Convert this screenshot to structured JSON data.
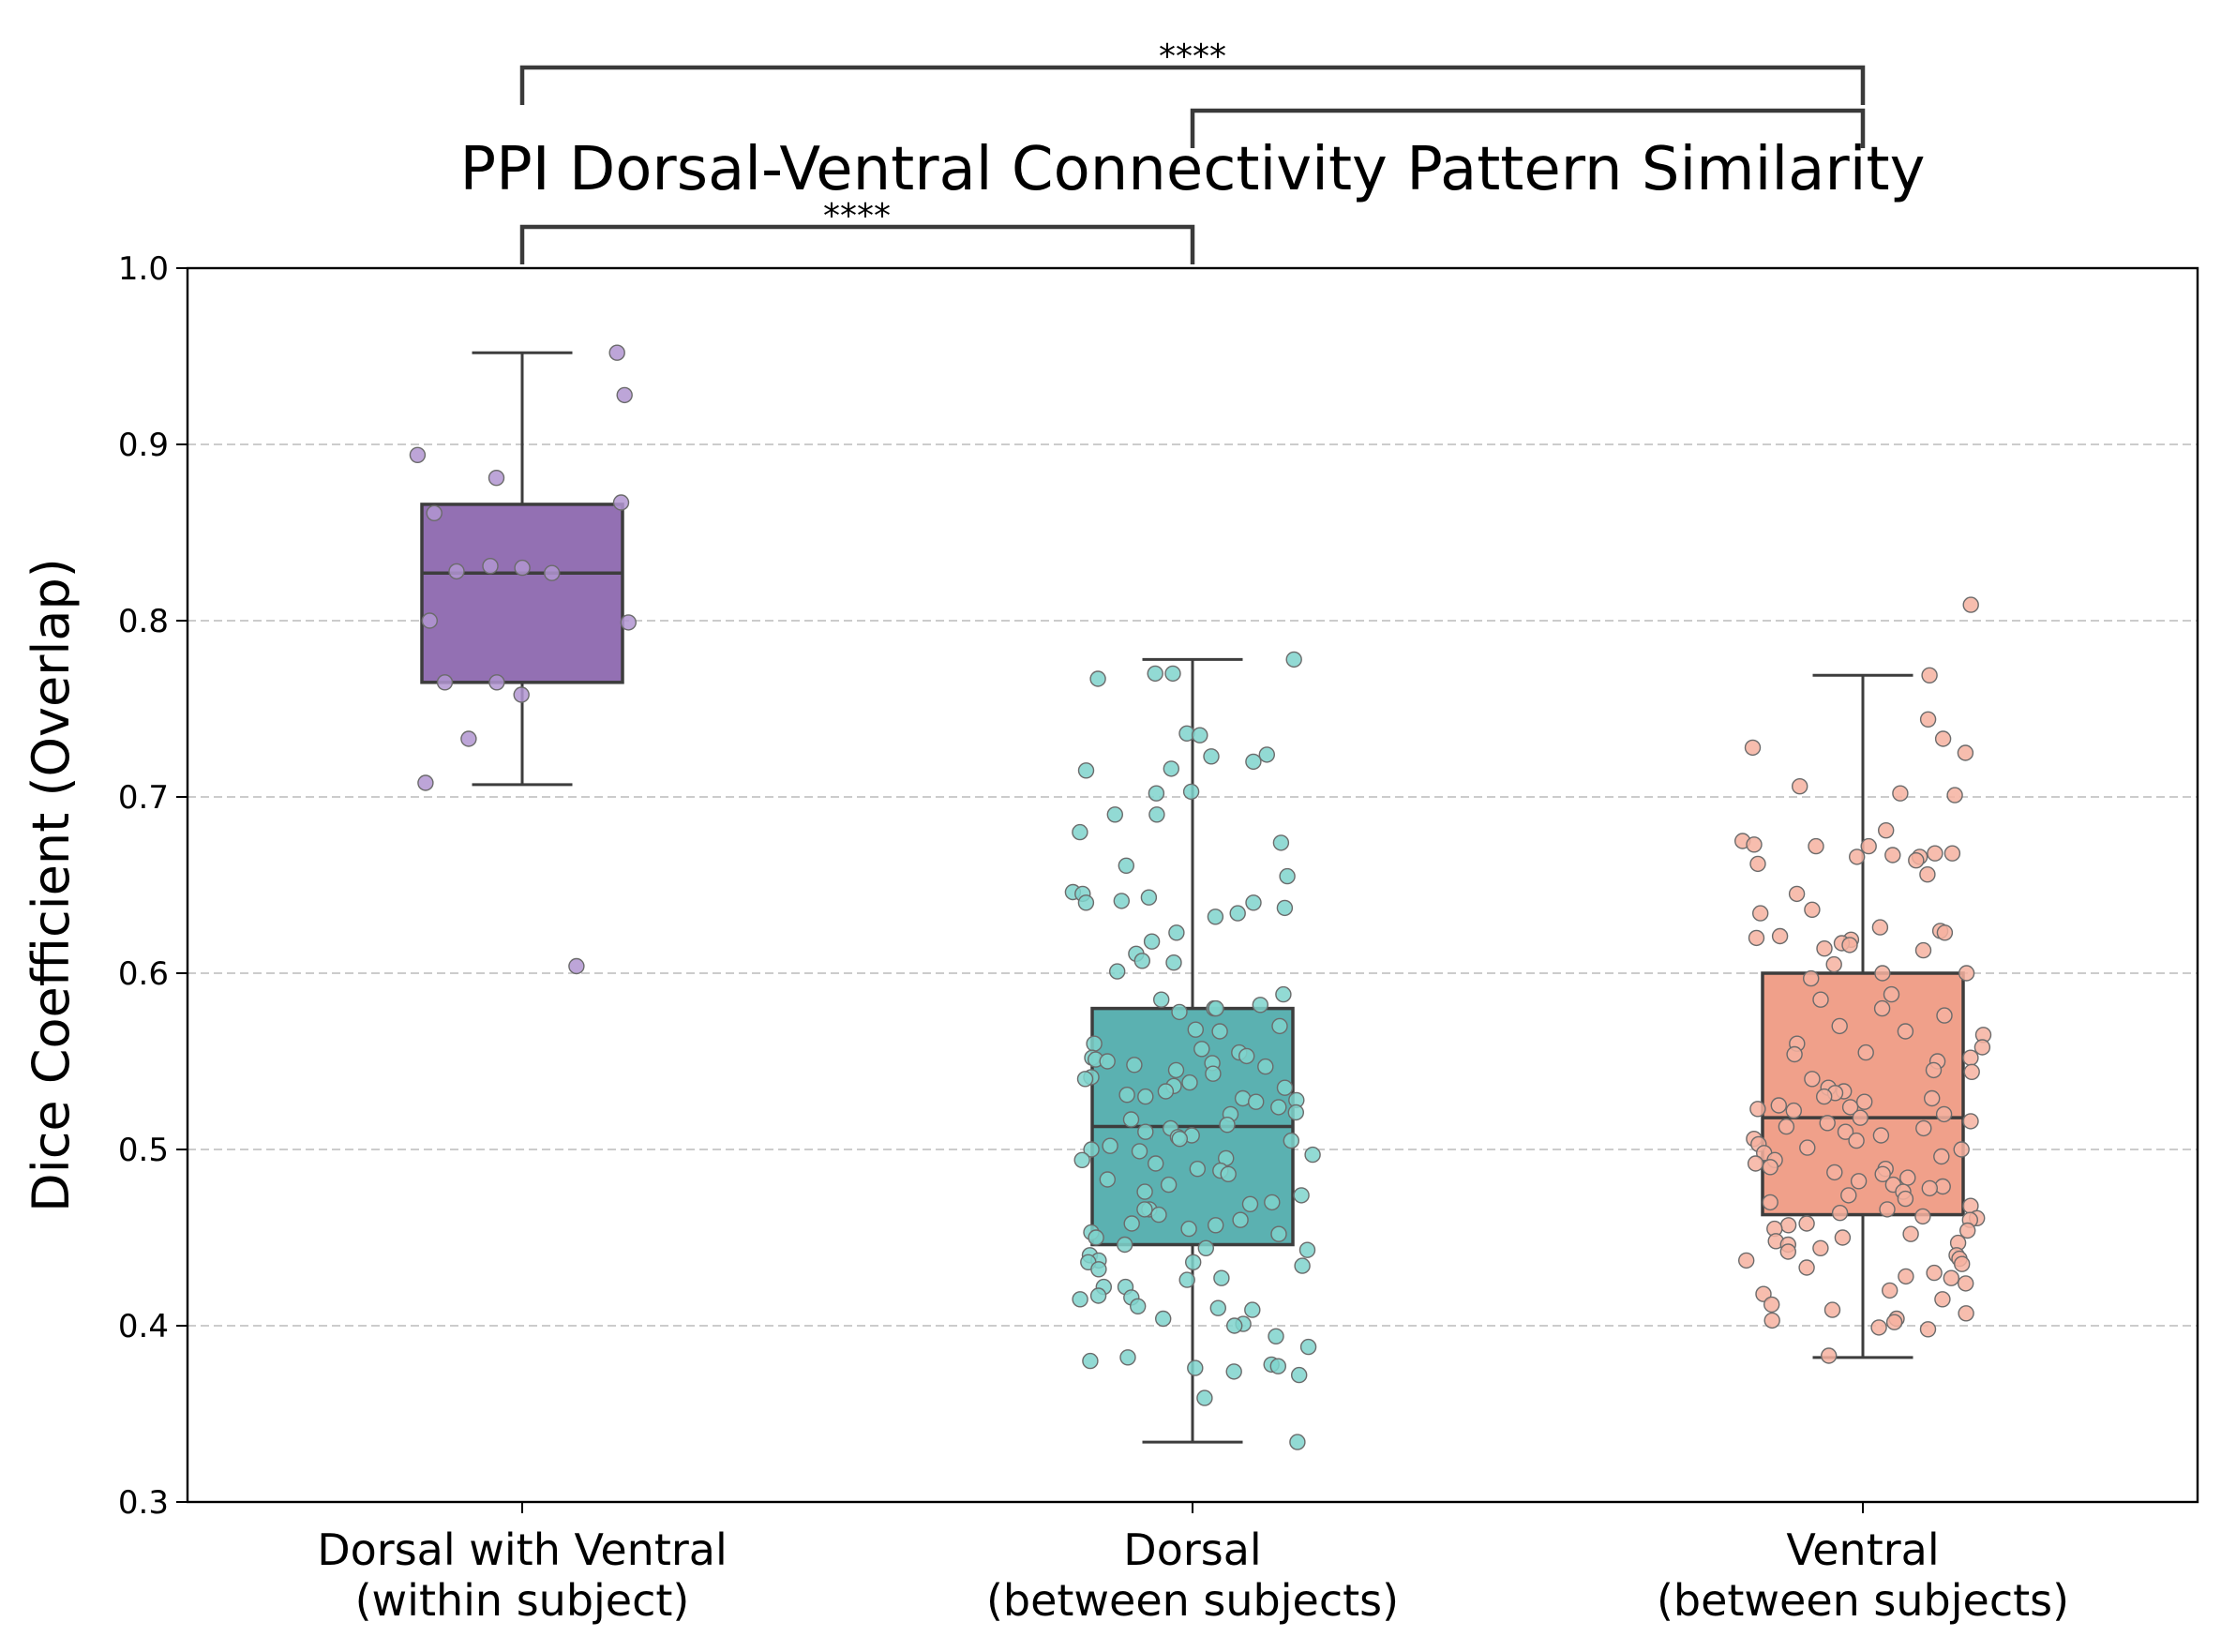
{
  "chart_data": {
    "type": "box",
    "title": "PPI Dorsal-Ventral Connectivity Pattern Similarity",
    "xlabel": "",
    "ylabel": "Dice Coefficient (Overlap)",
    "ylim": [
      0.3,
      1.0
    ],
    "yticks": [
      "0.3",
      "0.4",
      "0.5",
      "0.6",
      "0.7",
      "0.8",
      "0.9",
      "1.0"
    ],
    "grid": "y dashed",
    "categories": [
      {
        "line1": "Dorsal with Ventral",
        "line2": "(within subject)"
      },
      {
        "line1": "Dorsal",
        "line2": "(between subjects)"
      },
      {
        "line1": "Ventral",
        "line2": "(between subjects)"
      }
    ],
    "series": [
      {
        "name": "Dorsal with Ventral (within subject)",
        "color": "#9370b3",
        "point_color": "#b195d1",
        "whisker_low": 0.707,
        "q1": 0.765,
        "median": 0.827,
        "q3": 0.866,
        "whisker_high": 0.952,
        "points": [
          0.952,
          0.928,
          0.894,
          0.881,
          0.867,
          0.861,
          0.831,
          0.83,
          0.827,
          0.828,
          0.8,
          0.799,
          0.765,
          0.765,
          0.758,
          0.733,
          0.708,
          0.604
        ]
      },
      {
        "name": "Dorsal (between subjects)",
        "color": "#5bb1b1",
        "point_color": "#7fd4cc",
        "whisker_low": 0.334,
        "q1": 0.446,
        "median": 0.513,
        "q3": 0.58,
        "whisker_high": 0.778,
        "points": [
          0.778,
          0.77,
          0.77,
          0.767,
          0.736,
          0.735,
          0.724,
          0.723,
          0.72,
          0.716,
          0.715,
          0.703,
          0.702,
          0.69,
          0.69,
          0.68,
          0.674,
          0.661,
          0.655,
          0.646,
          0.645,
          0.643,
          0.641,
          0.64,
          0.64,
          0.637,
          0.634,
          0.632,
          0.623,
          0.618,
          0.611,
          0.607,
          0.606,
          0.601,
          0.588,
          0.585,
          0.582,
          0.58,
          0.58,
          0.578,
          0.57,
          0.568,
          0.567,
          0.56,
          0.557,
          0.555,
          0.553,
          0.552,
          0.551,
          0.55,
          0.549,
          0.548,
          0.547,
          0.545,
          0.543,
          0.541,
          0.54,
          0.538,
          0.536,
          0.535,
          0.533,
          0.531,
          0.53,
          0.529,
          0.528,
          0.527,
          0.524,
          0.521,
          0.52,
          0.517,
          0.514,
          0.512,
          0.51,
          0.508,
          0.507,
          0.506,
          0.505,
          0.502,
          0.5,
          0.499,
          0.497,
          0.495,
          0.494,
          0.492,
          0.489,
          0.488,
          0.486,
          0.483,
          0.48,
          0.476,
          0.474,
          0.47,
          0.469,
          0.466,
          0.466,
          0.463,
          0.46,
          0.458,
          0.457,
          0.455,
          0.453,
          0.452,
          0.45,
          0.446,
          0.444,
          0.443,
          0.44,
          0.437,
          0.436,
          0.436,
          0.434,
          0.432,
          0.427,
          0.426,
          0.422,
          0.422,
          0.417,
          0.416,
          0.415,
          0.411,
          0.41,
          0.409,
          0.404,
          0.401,
          0.4,
          0.394,
          0.388,
          0.382,
          0.38,
          0.378,
          0.377,
          0.376,
          0.374,
          0.372,
          0.359,
          0.334
        ]
      },
      {
        "name": "Ventral (between subjects)",
        "color": "#f0a08a",
        "point_color": "#f6b2a0",
        "whisker_low": 0.382,
        "q1": 0.463,
        "median": 0.518,
        "q3": 0.6,
        "whisker_high": 0.769,
        "points": [
          0.809,
          0.769,
          0.744,
          0.733,
          0.728,
          0.725,
          0.706,
          0.702,
          0.701,
          0.681,
          0.675,
          0.673,
          0.672,
          0.672,
          0.668,
          0.668,
          0.667,
          0.666,
          0.666,
          0.664,
          0.662,
          0.656,
          0.645,
          0.636,
          0.634,
          0.626,
          0.624,
          0.623,
          0.621,
          0.62,
          0.619,
          0.617,
          0.616,
          0.614,
          0.613,
          0.605,
          0.6,
          0.6,
          0.597,
          0.588,
          0.585,
          0.58,
          0.576,
          0.57,
          0.567,
          0.565,
          0.56,
          0.558,
          0.555,
          0.554,
          0.552,
          0.55,
          0.545,
          0.544,
          0.54,
          0.535,
          0.533,
          0.532,
          0.53,
          0.529,
          0.527,
          0.525,
          0.524,
          0.523,
          0.522,
          0.52,
          0.518,
          0.516,
          0.515,
          0.513,
          0.512,
          0.51,
          0.508,
          0.506,
          0.505,
          0.503,
          0.501,
          0.5,
          0.498,
          0.496,
          0.494,
          0.492,
          0.49,
          0.489,
          0.487,
          0.486,
          0.484,
          0.482,
          0.48,
          0.479,
          0.478,
          0.476,
          0.474,
          0.472,
          0.47,
          0.468,
          0.466,
          0.464,
          0.462,
          0.461,
          0.46,
          0.458,
          0.457,
          0.455,
          0.454,
          0.452,
          0.45,
          0.448,
          0.447,
          0.446,
          0.444,
          0.442,
          0.44,
          0.438,
          0.437,
          0.435,
          0.433,
          0.43,
          0.428,
          0.427,
          0.424,
          0.42,
          0.418,
          0.415,
          0.412,
          0.409,
          0.407,
          0.404,
          0.403,
          0.402,
          0.399,
          0.398,
          0.383
        ]
      }
    ],
    "significance": [
      {
        "from": 0,
        "to": 1,
        "label": "****"
      },
      {
        "from": 1,
        "to": 2,
        "label": ""
      },
      {
        "from": 0,
        "to": 2,
        "label": "****"
      }
    ]
  }
}
